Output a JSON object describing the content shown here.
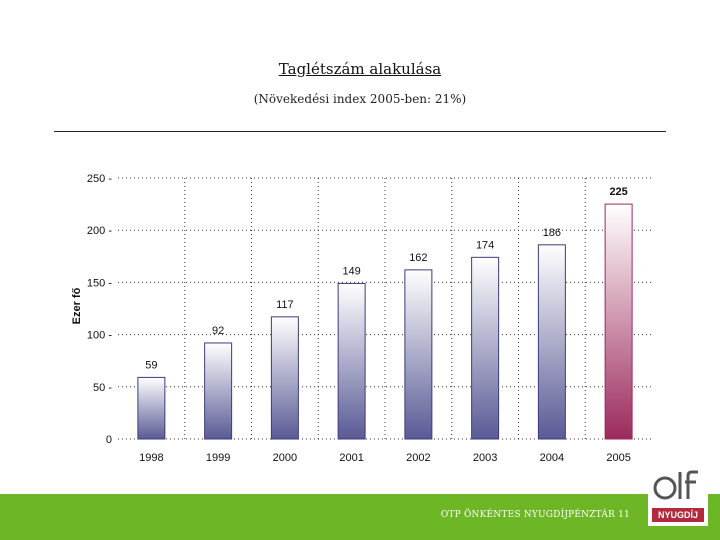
{
  "header": {
    "title": "Taglétszám alakulása",
    "subtitle": "(Növekedési index 2005-ben: 21%)"
  },
  "footer": {
    "text": "OTP ÖNKÉNTES NYUGDÍJPÉNZTÁR 11",
    "logo_band": "NYUGDÍJ",
    "color": "#6db726"
  },
  "chart_data": {
    "type": "bar",
    "ylabel": "Ezer fő",
    "xlabel": "",
    "categories": [
      "1998",
      "1999",
      "2000",
      "2001",
      "2002",
      "2003",
      "2004",
      "2005"
    ],
    "values": [
      59,
      92,
      117,
      149,
      162,
      174,
      186,
      225
    ],
    "data_labels": [
      "59",
      "92",
      "117",
      "149",
      "162",
      "174",
      "186",
      "225"
    ],
    "ylim": [
      0,
      250
    ],
    "yticks": [
      0,
      50,
      100,
      150,
      200,
      250
    ],
    "ytick_labels": [
      "0",
      "50",
      "100",
      "150",
      "200",
      "250"
    ],
    "grid": true,
    "colors": {
      "bar_top": "#ffffff",
      "bar_bottom": "#5a5a96",
      "highlight_top": "#ffffff",
      "highlight_bottom": "#9c2a5c"
    }
  }
}
